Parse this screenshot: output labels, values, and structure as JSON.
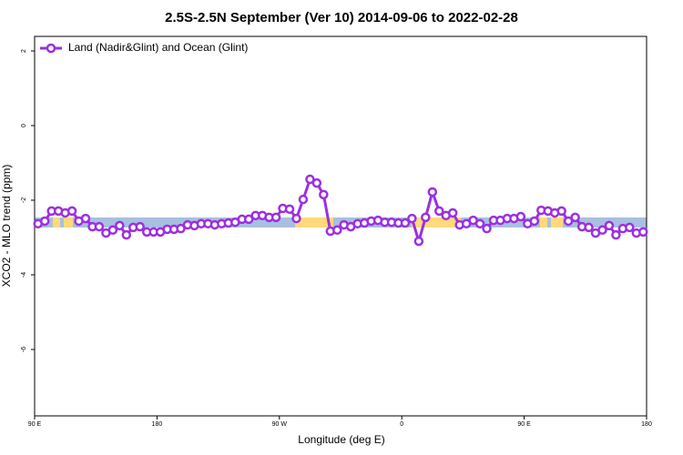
{
  "chart_data": {
    "type": "line",
    "title": "2.5S-2.5N September (Ver 10)   2014-09-06 to 2022-02-28",
    "xlabel": "Longitude (deg E)",
    "ylabel": "XCO2 - MLO trend (ppm)",
    "xlim": [
      90,
      540
    ],
    "xticks": [
      {
        "value": 90,
        "label": "90 E"
      },
      180,
      {
        "value": 270,
        "label": "90 W"
      },
      {
        "value": 360,
        "label": "0"
      },
      {
        "value": 450,
        "label": "90 E"
      },
      {
        "value": 540,
        "label": "180"
      }
    ],
    "ylim": [
      -7.78,
      2.39
    ],
    "yticks": [
      -6,
      -4,
      -2,
      0,
      2
    ],
    "legend": "top-left",
    "x": [
      92.5,
      97.5,
      102.5,
      107.5,
      112.5,
      117.5,
      122.5,
      127.5,
      132.5,
      137.5,
      142.5,
      147.5,
      152.5,
      157.5,
      162.5,
      167.5,
      172.5,
      177.5,
      182.5,
      187.5,
      192.5,
      197.5,
      202.5,
      207.5,
      212.5,
      217.5,
      222.5,
      227.5,
      232.5,
      237.5,
      242.5,
      247.5,
      252.5,
      257.5,
      262.5,
      267.5,
      272.5,
      277.5,
      282.5,
      287.5,
      292.5,
      297.5,
      302.5,
      307.5,
      312.5,
      317.5,
      322.5,
      327.5,
      332.5,
      337.5,
      342.5,
      347.5,
      352.5,
      357.5,
      362.5,
      367.5,
      372.5,
      377.5,
      382.5,
      387.5,
      392.5,
      397.5,
      402.5,
      407.5,
      412.5,
      417.5,
      422.5,
      427.5,
      432.5,
      437.5,
      442.5,
      447.5,
      452.5,
      457.5,
      462.5,
      467.5,
      472.5,
      477.5,
      482.5,
      487.5,
      492.5,
      497.5,
      502.5,
      507.5,
      512.5,
      517.5,
      522.5,
      527.5,
      532.5,
      537.5
    ],
    "series": [
      {
        "name": "Land (Nadir&Glint) and Ocean (Glint)",
        "color": "#9b30e0",
        "values": [
          -2.63,
          -2.56,
          -2.29,
          -2.29,
          -2.34,
          -2.29,
          -2.56,
          -2.49,
          -2.71,
          -2.71,
          -2.88,
          -2.8,
          -2.68,
          -2.93,
          -2.73,
          -2.71,
          -2.85,
          -2.85,
          -2.85,
          -2.78,
          -2.78,
          -2.76,
          -2.66,
          -2.68,
          -2.63,
          -2.63,
          -2.66,
          -2.63,
          -2.61,
          -2.59,
          -2.51,
          -2.51,
          -2.41,
          -2.41,
          -2.46,
          -2.46,
          -2.22,
          -2.24,
          -2.49,
          -1.98,
          -1.44,
          -1.54,
          -1.85,
          -2.83,
          -2.8,
          -2.66,
          -2.71,
          -2.63,
          -2.61,
          -2.56,
          -2.54,
          -2.59,
          -2.59,
          -2.61,
          -2.61,
          -2.49,
          -3.1,
          -2.46,
          -1.78,
          -2.29,
          -2.41,
          -2.34,
          -2.66,
          -2.63,
          -2.54,
          -2.63,
          -2.76,
          -2.54,
          -2.54,
          -2.49,
          -2.49,
          -2.44,
          -2.63,
          -2.56,
          -2.27,
          -2.29,
          -2.34,
          -2.29,
          -2.56,
          -2.46,
          -2.71,
          -2.73,
          -2.88,
          -2.8,
          -2.68,
          -2.93,
          -2.76,
          -2.73,
          -2.88,
          -2.85
        ]
      }
    ]
  }
}
